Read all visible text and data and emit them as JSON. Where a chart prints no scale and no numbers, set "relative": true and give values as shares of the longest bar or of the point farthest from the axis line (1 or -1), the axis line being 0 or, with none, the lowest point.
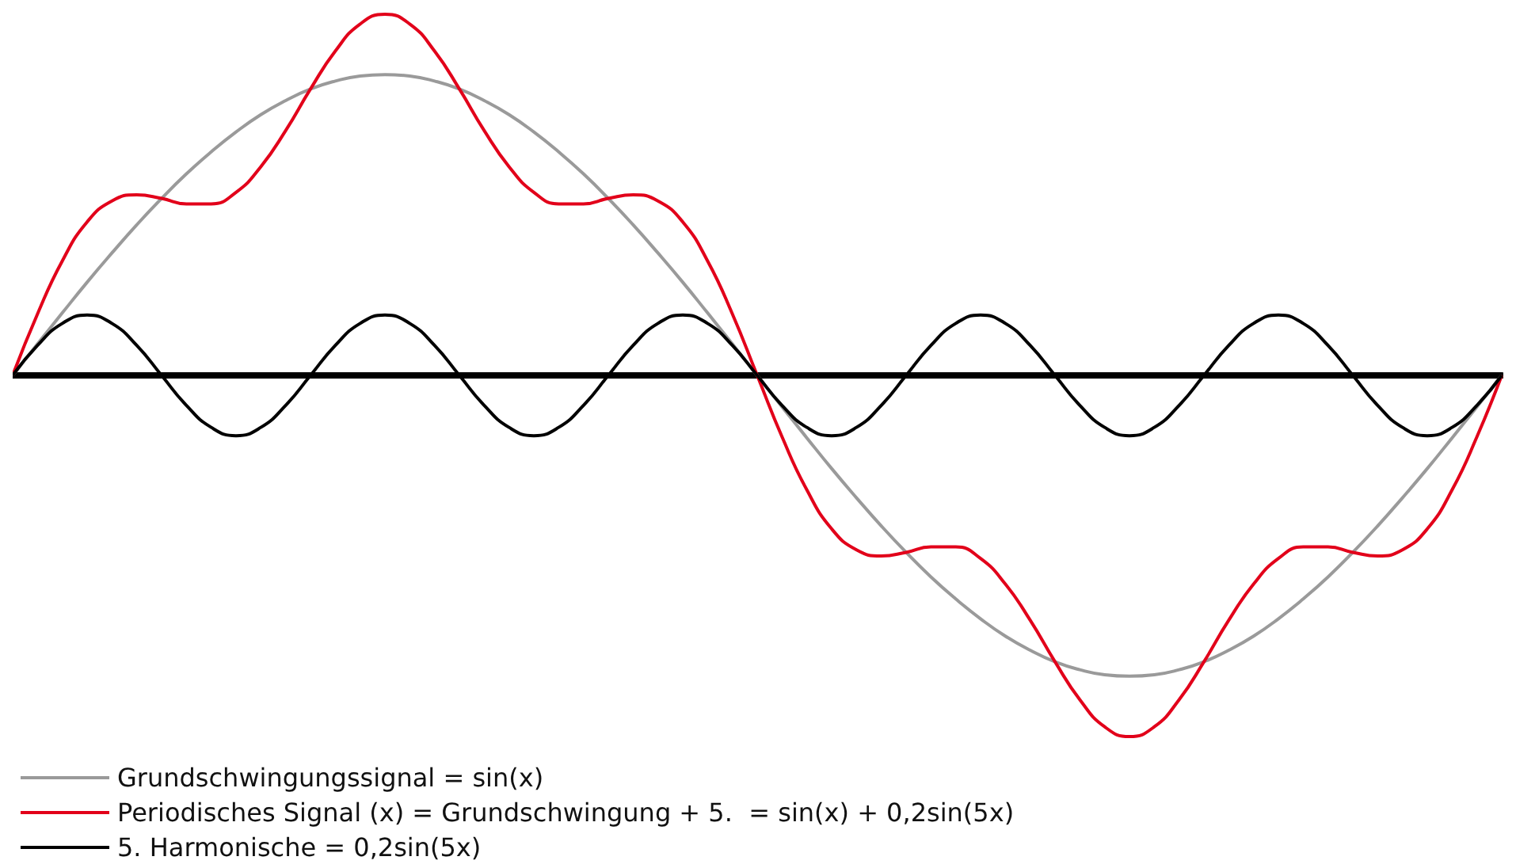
{
  "chart_data": {
    "type": "line",
    "relative": true,
    "legend": "bottom left",
    "categories": [
      null,
      null,
      null,
      null,
      null,
      null,
      null,
      null,
      null,
      null,
      null,
      null,
      null,
      null,
      null,
      null,
      null,
      null,
      null,
      null,
      null,
      null,
      null,
      null,
      null,
      null,
      null,
      null,
      null,
      null,
      null,
      null,
      null,
      null,
      null,
      null,
      null,
      null,
      null,
      null,
      null,
      null,
      null,
      null,
      null,
      null,
      null,
      null,
      null,
      null,
      null,
      null,
      null,
      null,
      null,
      null,
      null,
      null,
      null,
      null,
      null
    ],
    "series": [
      {
        "name": "Grundschwingungssignal = sin(x)",
        "color": "#9a9a9a",
        "values": [
          0,
          0.087,
          0.173,
          0.258,
          0.339,
          0.417,
          0.49,
          0.558,
          0.619,
          0.674,
          0.722,
          0.761,
          0.793,
          0.815,
          0.829,
          0.833,
          0.829,
          0.815,
          0.793,
          0.761,
          0.722,
          0.674,
          0.619,
          0.558,
          0.49,
          0.417,
          0.339,
          0.258,
          0.173,
          0.087,
          0,
          -0.087,
          -0.173,
          -0.258,
          -0.339,
          -0.417,
          -0.49,
          -0.558,
          -0.619,
          -0.674,
          -0.722,
          -0.761,
          -0.793,
          -0.815,
          -0.829,
          -0.833,
          -0.829,
          -0.815,
          -0.793,
          -0.761,
          -0.722,
          -0.674,
          -0.619,
          -0.558,
          -0.49,
          -0.417,
          -0.339,
          -0.258,
          -0.173,
          -0.087,
          0
        ]
      },
      {
        "name": "Periodisches Signal (x) = Grundschwingung + 5.  = sin(x) + 0,2sin(5x)",
        "color": "#e2001a",
        "values": [
          0,
          0.17,
          0.317,
          0.425,
          0.483,
          0.5,
          0.49,
          0.475,
          0.475,
          0.507,
          0.578,
          0.678,
          0.793,
          0.898,
          0.973,
          1.0,
          0.973,
          0.898,
          0.793,
          0.678,
          0.578,
          0.507,
          0.475,
          0.475,
          0.49,
          0.5,
          0.483,
          0.425,
          0.317,
          0.17,
          0,
          -0.17,
          -0.317,
          -0.425,
          -0.483,
          -0.5,
          -0.49,
          -0.475,
          -0.475,
          -0.507,
          -0.578,
          -0.678,
          -0.793,
          -0.898,
          -0.973,
          -1.0,
          -0.973,
          -0.898,
          -0.793,
          -0.678,
          -0.578,
          -0.507,
          -0.475,
          -0.475,
          -0.49,
          -0.5,
          -0.483,
          -0.425,
          -0.317,
          -0.17,
          0
        ]
      },
      {
        "name": "5. Harmonische = 0,2sin(5x)",
        "color": "#000000",
        "values": [
          0,
          0.083,
          0.144,
          0.167,
          0.144,
          0.083,
          0,
          -0.083,
          -0.144,
          -0.167,
          -0.144,
          -0.083,
          0,
          0.083,
          0.144,
          0.167,
          0.144,
          0.083,
          0,
          -0.083,
          -0.144,
          -0.167,
          -0.144,
          -0.083,
          0,
          0.083,
          0.144,
          0.167,
          0.144,
          0.083,
          0,
          -0.083,
          -0.144,
          -0.167,
          -0.144,
          -0.083,
          0,
          0.083,
          0.144,
          0.167,
          0.144,
          0.083,
          0,
          -0.083,
          -0.144,
          -0.167,
          -0.144,
          -0.083,
          0,
          0.083,
          0.144,
          0.167,
          0.144,
          0.083,
          0,
          -0.083,
          -0.144,
          -0.167,
          -0.144,
          -0.083,
          0
        ]
      }
    ]
  }
}
